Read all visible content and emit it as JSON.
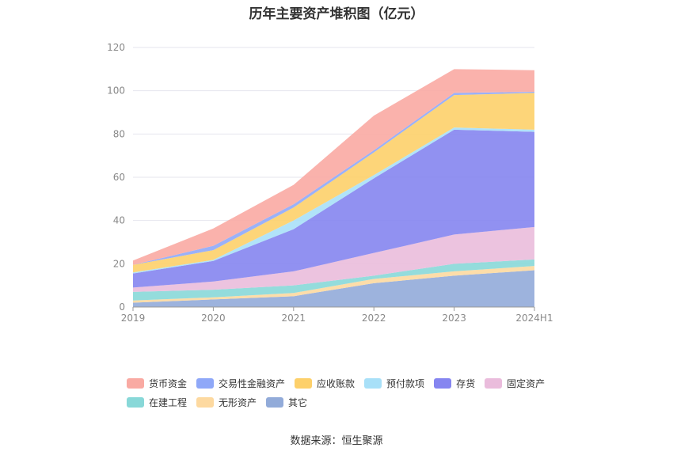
{
  "title": "历年主要资产堆积图（亿元）",
  "source": "数据来源：恒生聚源",
  "chart_data": {
    "type": "area",
    "stacked": true,
    "title": "历年主要资产堆积图（亿元）",
    "xlabel": "",
    "ylabel": "",
    "categories": [
      "2019",
      "2020",
      "2021",
      "2022",
      "2023",
      "2024H1"
    ],
    "ylim": [
      0,
      120
    ],
    "yticks": [
      0,
      20,
      40,
      60,
      80,
      100,
      120
    ],
    "grid": true,
    "legend_position": "bottom",
    "series": [
      {
        "name": "其它",
        "color": "#92abd9",
        "values": [
          2.0,
          3.5,
          5.0,
          11.0,
          14.5,
          17.0
        ]
      },
      {
        "name": "无形资产",
        "color": "#fdd9a0",
        "values": [
          1.0,
          1.0,
          1.5,
          2.0,
          2.0,
          2.0
        ]
      },
      {
        "name": "在建工程",
        "color": "#88d8d8",
        "values": [
          4.0,
          3.5,
          3.5,
          1.5,
          3.5,
          3.0
        ]
      },
      {
        "name": "固定资产",
        "color": "#eabcdc",
        "values": [
          2.0,
          3.8,
          6.5,
          10.5,
          13.5,
          15.0
        ]
      },
      {
        "name": "存货",
        "color": "#8585f0",
        "values": [
          6.5,
          9.5,
          19.5,
          34.5,
          48.5,
          44.0
        ]
      },
      {
        "name": "预付款项",
        "color": "#a8e0f8",
        "values": [
          0.5,
          0.5,
          4.0,
          1.5,
          1.0,
          1.0
        ]
      },
      {
        "name": "应收账款",
        "color": "#fdd06a",
        "values": [
          3.5,
          4.5,
          6.0,
          10.5,
          15.0,
          17.0
        ]
      },
      {
        "name": "交易性金融资产",
        "color": "#8fa8f8",
        "values": [
          0.0,
          2.0,
          1.5,
          1.0,
          1.0,
          0.5
        ]
      },
      {
        "name": "货币资金",
        "color": "#f9aaa3",
        "values": [
          2.0,
          8.0,
          9.0,
          16.0,
          11.0,
          10.0
        ]
      }
    ]
  },
  "legend": {
    "rows": [
      [
        "货币资金",
        "交易性金融资产",
        "应收账款",
        "预付款项",
        "存货",
        "固定资产"
      ],
      [
        "在建工程",
        "无形资产",
        "其它"
      ]
    ]
  }
}
